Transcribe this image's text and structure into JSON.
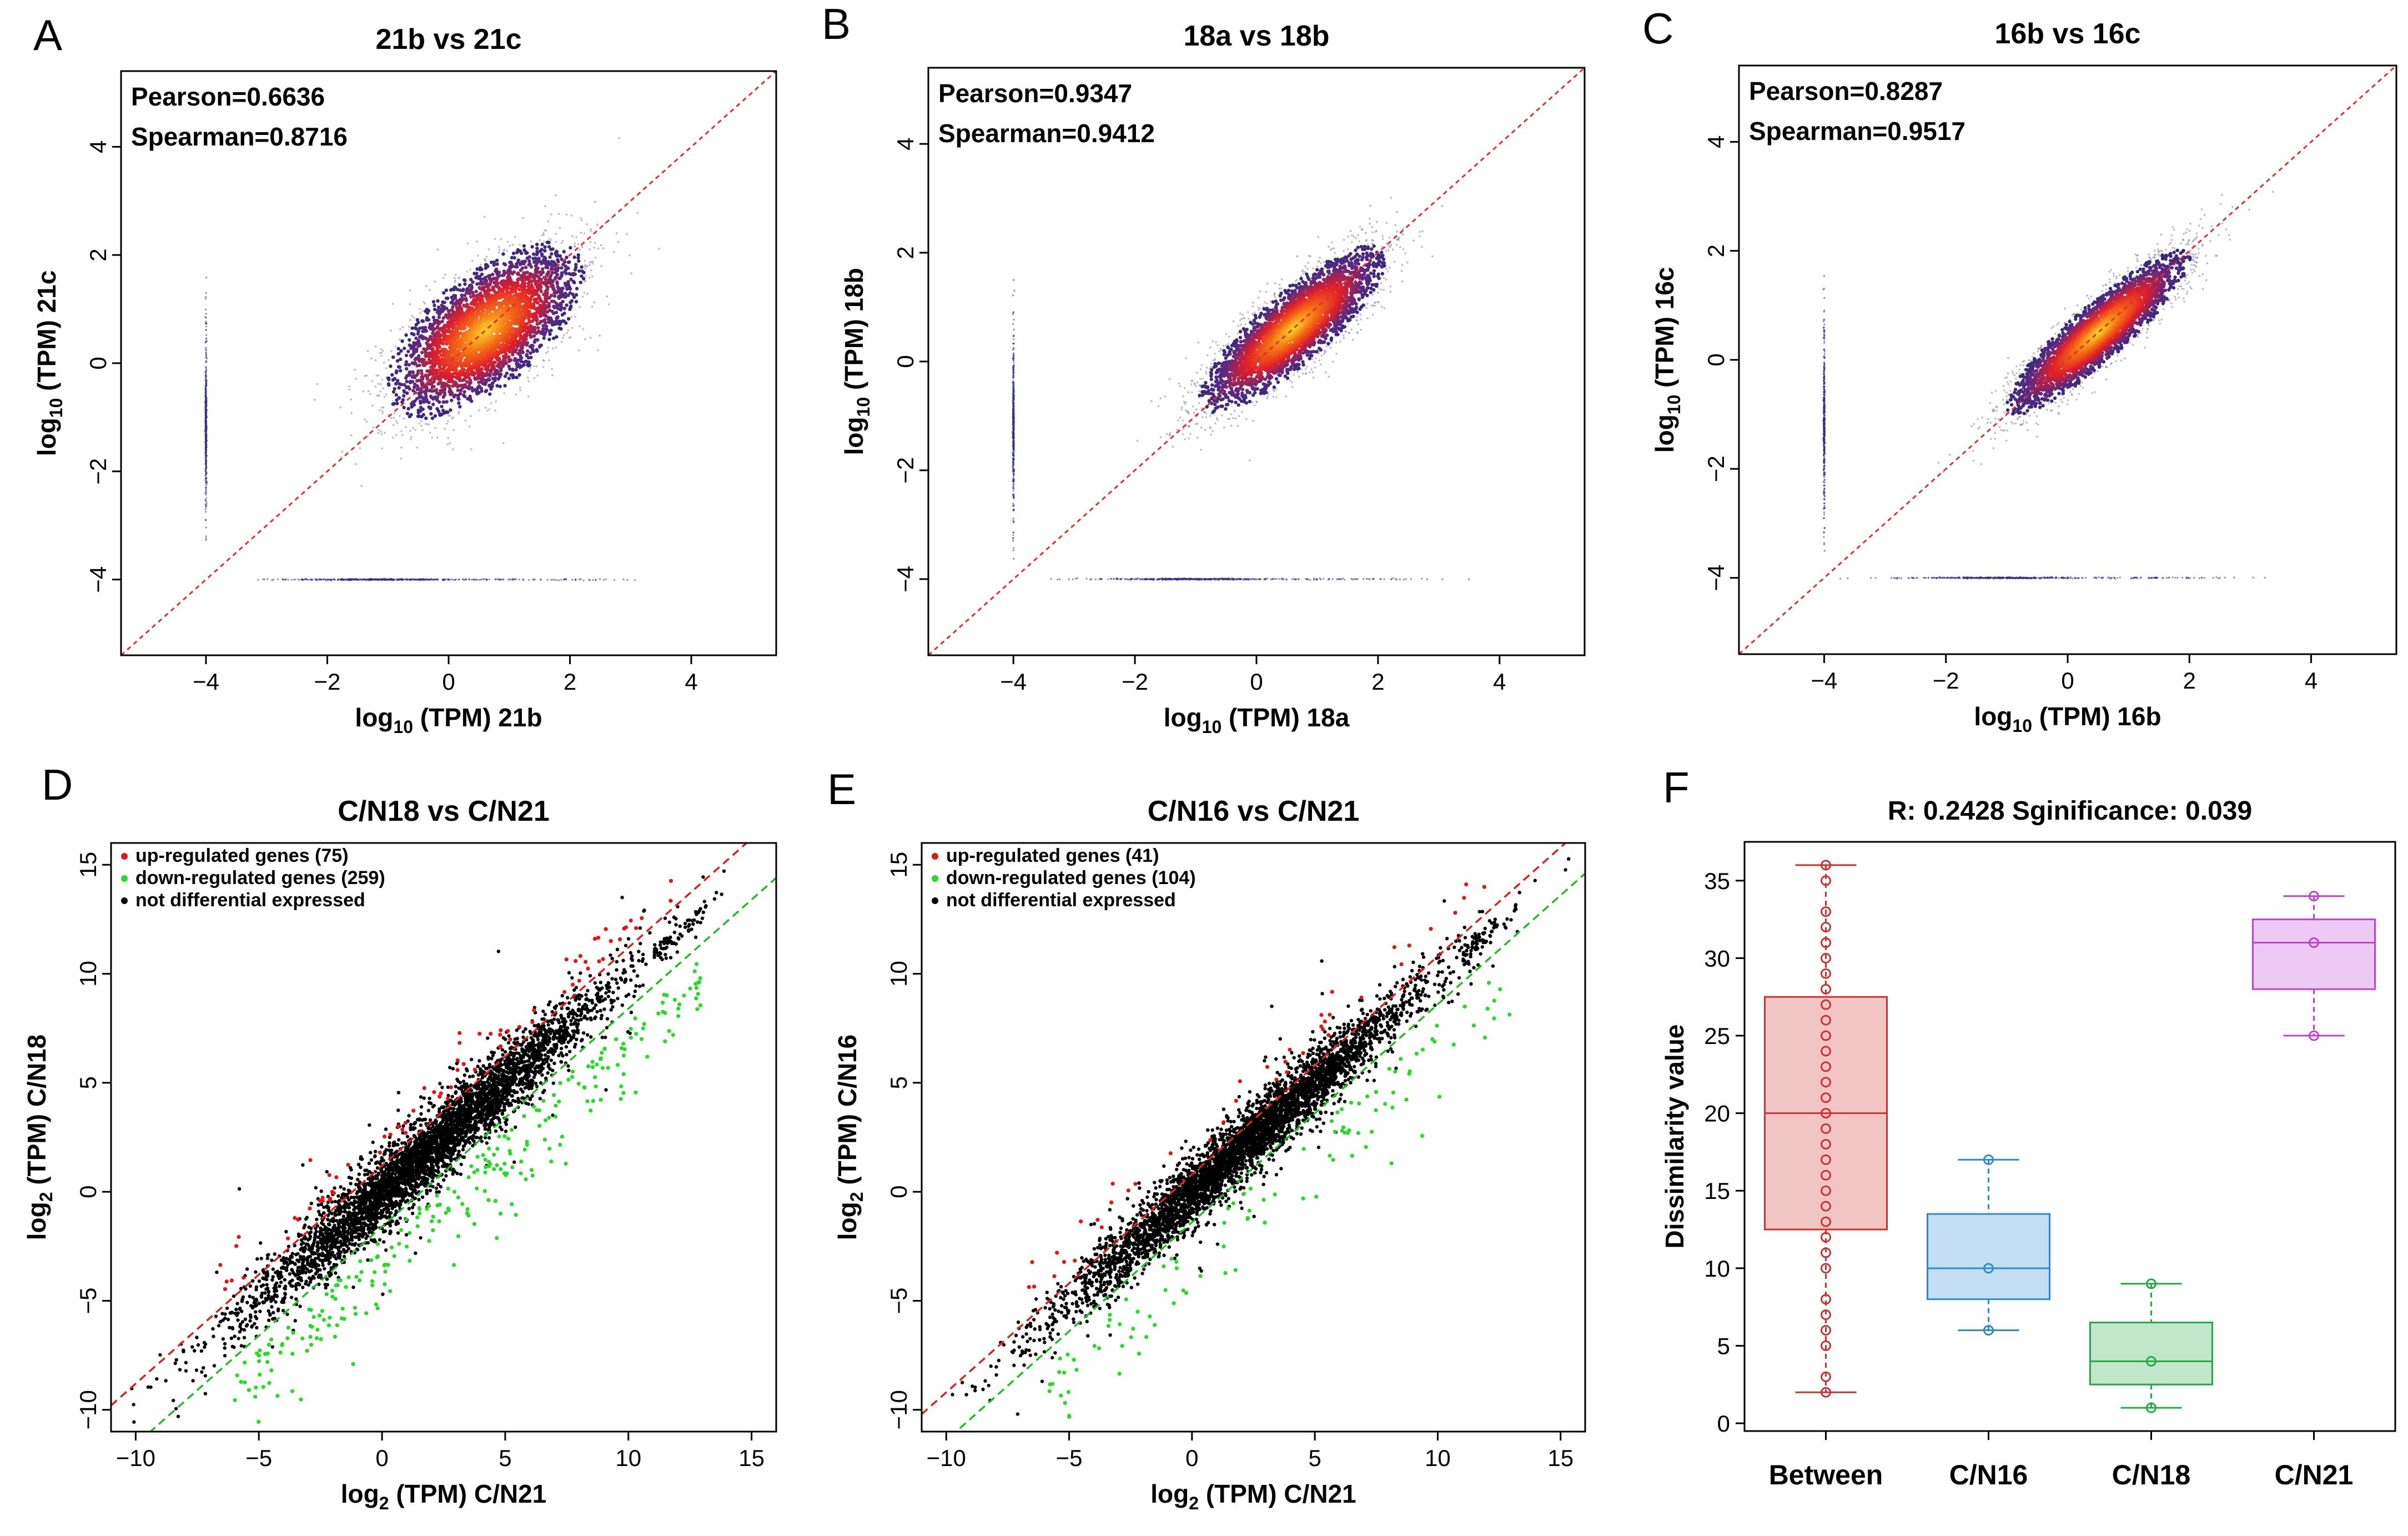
{
  "colors": {
    "axis": "#000000",
    "diag": "#e03030",
    "upline": "#e02020",
    "downline": "#20c020",
    "up": "#ee1111",
    "down": "#22dd22",
    "ns": "#000000",
    "between": "#d03030",
    "cn16": "#2a8ad8",
    "cn18": "#22aa44",
    "cn21": "#c040d8"
  },
  "chart_data": [
    {
      "panel": "A",
      "type": "scatter",
      "title": "21b vs 21c",
      "xlabel_base": "log",
      "xlabel_sub": "10",
      "xlabel_rest": " (TPM) 21b",
      "ylabel_base": "log",
      "ylabel_sub": "10",
      "ylabel_rest": " (TPM) 21c",
      "xlim": [
        -5.4,
        5.4
      ],
      "ylim": [
        -5.4,
        5.4
      ],
      "xticks": [
        -4,
        -2,
        0,
        2,
        4
      ],
      "yticks": [
        -4,
        -2,
        0,
        2,
        4
      ],
      "xtick_labels": [
        "−4",
        "−2",
        "0",
        "2",
        "4"
      ],
      "ytick_labels": [
        "−4",
        "−2",
        "0",
        "2",
        "4"
      ],
      "stats": [
        "Pearson=0.6636",
        "Spearman=0.8716"
      ],
      "cloud": {
        "center": [
          0.6,
          0.6
        ],
        "spread_major": 0.95,
        "spread_minor": 0.45
      },
      "reference_line": "y = x"
    },
    {
      "panel": "B",
      "type": "scatter",
      "title": "18a vs 18b",
      "xlabel_base": "log",
      "xlabel_sub": "10",
      "xlabel_rest": " (TPM) 18a",
      "ylabel_base": "log",
      "ylabel_sub": "10",
      "ylabel_rest": " (TPM) 18b",
      "xlim": [
        -5.4,
        5.4
      ],
      "ylim": [
        -5.4,
        5.4
      ],
      "xticks": [
        -4,
        -2,
        0,
        2,
        4
      ],
      "yticks": [
        -4,
        -2,
        0,
        2,
        4
      ],
      "xtick_labels": [
        "−4",
        "−2",
        "0",
        "2",
        "4"
      ],
      "ytick_labels": [
        "−4",
        "−2",
        "0",
        "2",
        "4"
      ],
      "stats": [
        "Pearson=0.9347",
        "Spearman=0.9412"
      ],
      "cloud": {
        "center": [
          0.6,
          0.6
        ],
        "spread_major": 0.95,
        "spread_minor": 0.28
      },
      "reference_line": "y = x"
    },
    {
      "panel": "C",
      "type": "scatter",
      "title": "16b vs 16c",
      "xlabel_base": "log",
      "xlabel_sub": "10",
      "xlabel_rest": " (TPM) 16b",
      "ylabel_base": "log",
      "ylabel_sub": "10",
      "ylabel_rest": " (TPM) 16c",
      "xlim": [
        -5.4,
        5.4
      ],
      "ylim": [
        -5.4,
        5.4
      ],
      "xticks": [
        -4,
        -2,
        0,
        2,
        4
      ],
      "yticks": [
        -4,
        -2,
        0,
        2,
        4
      ],
      "xtick_labels": [
        "−4",
        "−2",
        "0",
        "2",
        "4"
      ],
      "ytick_labels": [
        "−4",
        "−2",
        "0",
        "2",
        "4"
      ],
      "stats": [
        "Pearson=0.8287",
        "Spearman=0.9517"
      ],
      "cloud": {
        "center": [
          0.5,
          0.5
        ],
        "spread_major": 0.95,
        "spread_minor": 0.22
      },
      "reference_line": "y = x"
    },
    {
      "panel": "D",
      "type": "scatter",
      "title": "C/N18 vs C/N21",
      "xlabel_base": "log",
      "xlabel_sub": "2",
      "xlabel_rest": " (TPM) C/N21",
      "ylabel_base": "log",
      "ylabel_sub": "2",
      "ylabel_rest": " (TPM) C/N18",
      "xlim": [
        -11,
        16
      ],
      "ylim": [
        -11,
        16
      ],
      "xticks": [
        -10,
        -5,
        0,
        5,
        10,
        15
      ],
      "yticks": [
        -10,
        -5,
        0,
        5,
        10,
        15
      ],
      "xtick_labels": [
        "−10",
        "−5",
        "0",
        "5",
        "10",
        "15"
      ],
      "ytick_labels": [
        "−10",
        "−5",
        "0",
        "5",
        "10",
        "15"
      ],
      "legend": [
        {
          "label": "up-regulated genes (75)",
          "category": "up"
        },
        {
          "label": "down-regulated genes (259)",
          "category": "down"
        },
        {
          "label": "not differential expressed",
          "category": "ns"
        }
      ],
      "counts": {
        "up": 75,
        "down": 259
      },
      "threshold_lines": [
        {
          "intercept": 1.2,
          "category": "up"
        },
        {
          "intercept": -1.6,
          "category": "down"
        }
      ],
      "cloud": {
        "center": [
          2,
          2
        ],
        "spread_major": 3.6,
        "spread_minor": 0.85
      }
    },
    {
      "panel": "E",
      "type": "scatter",
      "title": "C/N16 vs C/N21",
      "xlabel_base": "log",
      "xlabel_sub": "2",
      "xlabel_rest": " (TPM) C/N21",
      "ylabel_base": "log",
      "ylabel_sub": "2",
      "ylabel_rest": " (TPM) C/N16",
      "xlim": [
        -11,
        16
      ],
      "ylim": [
        -11,
        16
      ],
      "xticks": [
        -10,
        -5,
        0,
        5,
        10,
        15
      ],
      "yticks": [
        -10,
        -5,
        0,
        5,
        10,
        15
      ],
      "xtick_labels": [
        "−10",
        "−5",
        "0",
        "5",
        "10",
        "15"
      ],
      "ytick_labels": [
        "−10",
        "−5",
        "0",
        "5",
        "10",
        "15"
      ],
      "legend": [
        {
          "label": "up-regulated genes (41)",
          "category": "up"
        },
        {
          "label": "down-regulated genes (104)",
          "category": "down"
        },
        {
          "label": "not differential expressed",
          "category": "ns"
        }
      ],
      "counts": {
        "up": 41,
        "down": 104
      },
      "threshold_lines": [
        {
          "intercept": 0.8,
          "category": "up"
        },
        {
          "intercept": -1.4,
          "category": "down"
        }
      ],
      "cloud": {
        "center": [
          2,
          2
        ],
        "spread_major": 3.6,
        "spread_minor": 0.75
      }
    },
    {
      "panel": "F",
      "type": "box",
      "title": "R: 0.2428  Sginificance: 0.039",
      "ylabel": "Dissimilarity value",
      "ylim": [
        -0.5,
        37.5
      ],
      "yticks": [
        0,
        5,
        10,
        15,
        20,
        25,
        30,
        35
      ],
      "ytick_labels": [
        "0",
        "5",
        "10",
        "15",
        "20",
        "25",
        "30",
        "35"
      ],
      "groups": [
        {
          "name": "Between",
          "color_key": "between",
          "min": 2,
          "q1": 12.5,
          "median": 20,
          "q3": 27.5,
          "max": 36,
          "points": [
            2,
            3,
            5,
            6,
            7,
            8,
            10,
            11,
            12,
            13,
            14,
            15,
            16,
            17,
            18,
            19,
            20,
            21,
            22,
            23,
            24,
            25,
            26,
            27,
            28,
            29,
            30,
            31,
            32,
            33,
            35,
            36
          ]
        },
        {
          "name": "C/N16",
          "color_key": "cn16",
          "min": 6,
          "q1": 8,
          "median": 10,
          "q3": 13.5,
          "max": 17,
          "points": [
            6,
            10,
            17
          ]
        },
        {
          "name": "C/N18",
          "color_key": "cn18",
          "min": 1,
          "q1": 2.5,
          "median": 4,
          "q3": 6.5,
          "max": 9,
          "points": [
            1,
            4,
            9
          ]
        },
        {
          "name": "C/N21",
          "color_key": "cn21",
          "min": 25,
          "q1": 28,
          "median": 31,
          "q3": 32.5,
          "max": 34,
          "points": [
            25,
            31,
            34
          ]
        }
      ]
    }
  ]
}
